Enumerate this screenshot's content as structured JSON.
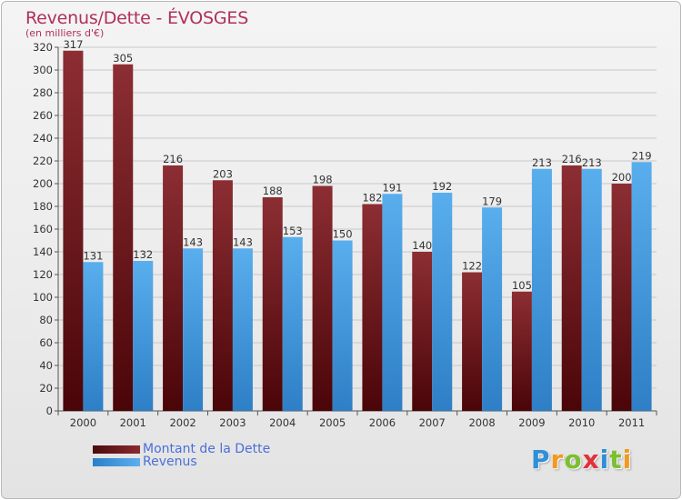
{
  "chart_data": {
    "type": "bar",
    "title": "Revenus/Dette - ÉVOSGES",
    "subtitle": "(en milliers d'€)",
    "categories": [
      "2000",
      "2001",
      "2002",
      "2003",
      "2004",
      "2005",
      "2006",
      "2007",
      "2008",
      "2009",
      "2010",
      "2011"
    ],
    "series": [
      {
        "name": "Montant de la Dette",
        "color": "#7a1e23",
        "values": [
          317,
          305,
          216,
          203,
          188,
          198,
          182,
          140,
          122,
          105,
          216,
          200
        ]
      },
      {
        "name": "Revenus",
        "color": "#4fa3e3",
        "values": [
          131,
          132,
          143,
          143,
          153,
          150,
          191,
          192,
          179,
          213,
          213,
          219
        ]
      }
    ],
    "ylim": [
      0,
      320
    ],
    "yticks": [
      0,
      20,
      40,
      60,
      80,
      100,
      120,
      140,
      160,
      180,
      200,
      220,
      240,
      260,
      280,
      300,
      320
    ],
    "grid": true,
    "legend_position": "bottom-left"
  },
  "logo": {
    "text": "Proxiti",
    "letters": [
      {
        "ch": "P",
        "color": "#2f8fd8"
      },
      {
        "ch": "r",
        "color": "#f29a1f"
      },
      {
        "ch": "o",
        "color": "#7cbf2f"
      },
      {
        "ch": "x",
        "color": "#e2313a"
      },
      {
        "ch": "i",
        "color": "#2f8fd8"
      },
      {
        "ch": "t",
        "color": "#7cbf2f"
      },
      {
        "ch": "i",
        "color": "#f29a1f"
      }
    ]
  }
}
